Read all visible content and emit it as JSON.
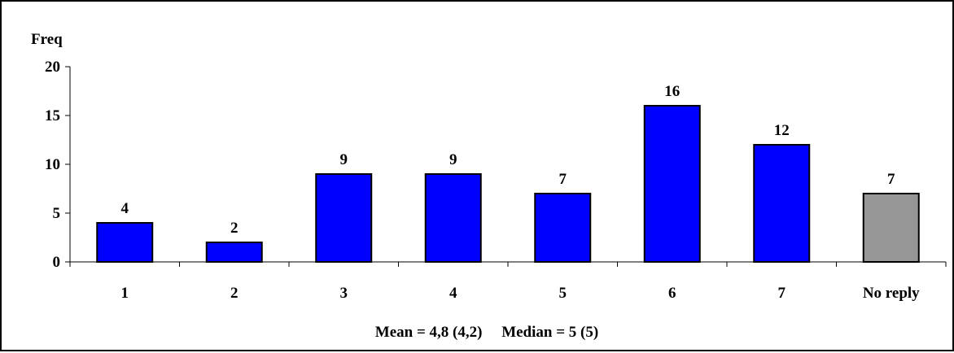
{
  "chart_data": {
    "type": "bar",
    "ylabel": "Freq",
    "ylim": [
      0,
      20
    ],
    "yticks": [
      0,
      5,
      10,
      15,
      20
    ],
    "categories": [
      "1",
      "2",
      "3",
      "4",
      "5",
      "6",
      "7",
      "No reply"
    ],
    "values": [
      4,
      2,
      9,
      9,
      7,
      16,
      12,
      7
    ],
    "bar_colors": [
      "#0000ff",
      "#0000ff",
      "#0000ff",
      "#0000ff",
      "#0000ff",
      "#0000ff",
      "#0000ff",
      "#969696"
    ],
    "data_labels": [
      "4",
      "2",
      "9",
      "9",
      "7",
      "16",
      "12",
      "7"
    ],
    "footer": "Mean = 4,8 (4,2)     Median = 5 (5)",
    "grid": false,
    "legend": "none"
  }
}
